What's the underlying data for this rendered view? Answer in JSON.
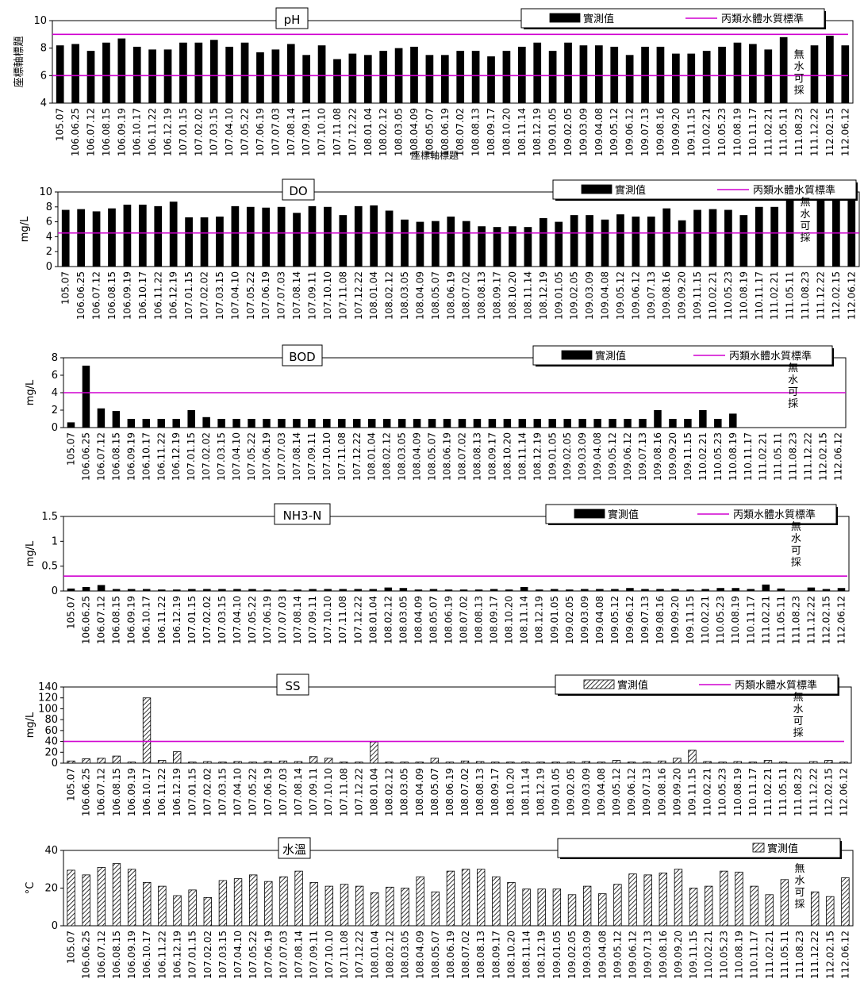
{
  "dates": [
    "105.07",
    "106.06.25",
    "106.07.12",
    "106.08.15",
    "106.09.19",
    "106.10.17",
    "106.11.22",
    "106.12.19",
    "107.01.15",
    "107.02.02",
    "107.03.15",
    "107.04.10",
    "107.05.22",
    "107.06.19",
    "107.07.03",
    "107.08.14",
    "107.09.11",
    "107.10.10",
    "107.11.08",
    "107.12.22",
    "108.01.04",
    "108.02.12",
    "108.03.05",
    "108.04.09",
    "108.05.07",
    "108.06.19",
    "108.07.02",
    "108.08.13",
    "108.09.17",
    "108.10.20",
    "108.11.14",
    "108.12.19",
    "109.01.05",
    "109.02.05",
    "109.03.09",
    "109.04.08",
    "109.05.12",
    "109.06.12",
    "109.07.13",
    "109.08.16",
    "109.09.20",
    "109.11.15",
    "110.02.21",
    "110.05.23",
    "110.08.19",
    "110.11.17",
    "111.02.21",
    "111.05.11",
    "111.08.23",
    "111.12.22",
    "112.02.15",
    "112.06.12"
  ],
  "legend_measured": "實測值",
  "legend_standard": "丙類水體水質標準",
  "no_water": [
    "無",
    "水",
    "可",
    "採"
  ],
  "overlay_text": "座標軸標題",
  "chart_data": [
    {
      "type": "bar",
      "title": "pH",
      "ylabel": "座標軸標題",
      "ylim": [
        4,
        10
      ],
      "yticks": [
        4,
        6,
        8,
        10
      ],
      "series": [
        {
          "name": "實測值",
          "values": [
            8.2,
            8.3,
            7.8,
            8.4,
            8.7,
            8.1,
            7.9,
            7.9,
            8.4,
            8.4,
            8.6,
            8.1,
            8.4,
            7.7,
            7.9,
            8.3,
            7.5,
            8.2,
            7.2,
            7.6,
            7.5,
            7.8,
            8.0,
            8.1,
            7.5,
            7.5,
            7.8,
            7.8,
            7.4,
            7.8,
            8.1,
            8.4,
            7.8,
            8.4,
            8.2,
            8.2,
            8.1,
            7.5,
            8.1,
            8.1,
            7.6,
            7.6,
            7.8,
            8.1,
            8.4,
            8.3,
            7.9,
            8.8,
            null,
            8.2,
            8.9,
            8.2
          ],
          "pattern": "solid"
        }
      ],
      "standard_lines": [
        9,
        6
      ],
      "no_water_index": 48,
      "categories": [
        "105.07",
        "106.06.25",
        "106.07.12",
        "106.08.15",
        "106.09.19",
        "106.10.17",
        "106.11.22",
        "106.12.19",
        "107.01.15",
        "107.02.02",
        "107.03.15",
        "107.04.10",
        "107.05.22",
        "107.06.19",
        "107.07.03",
        "107.08.14",
        "107.09.11",
        "107.10.10",
        "107.11.08",
        "107.12.22",
        "108.01.04",
        "108.02.12",
        "108.03.05",
        "108.04.09",
        "108.05.07",
        "108.06.19",
        "108.07.02",
        "108.08.13",
        "108.09.17",
        "108.10.20",
        "108.11.14",
        "108.12.19",
        "109.01.05",
        "109.02.05",
        "109.03.09",
        "109.04.08",
        "109.05.12",
        "109.06.12",
        "109.07.13",
        "109.08.16",
        "109.09.20",
        "109.11.15",
        "110.02.21",
        "110.05.23",
        "110.08.19",
        "110.11.17",
        "111.02.21",
        "111.05.11",
        "111.08.23",
        "111.12.22",
        "112.02.15",
        "112.06.12"
      ]
    },
    {
      "type": "bar",
      "title": "DO",
      "ylabel": "mg/L",
      "ylim": [
        0,
        10
      ],
      "yticks": [
        0,
        2,
        4,
        6,
        8,
        10
      ],
      "series": [
        {
          "name": "實測值",
          "values": [
            7.6,
            7.7,
            7.4,
            7.8,
            8.3,
            8.3,
            8.1,
            8.7,
            6.6,
            6.6,
            6.7,
            8.1,
            8.0,
            7.9,
            8.0,
            7.2,
            8.1,
            8.0,
            6.9,
            8.1,
            8.2,
            7.5,
            6.3,
            6.0,
            6.1,
            6.7,
            6.1,
            5.4,
            5.3,
            5.4,
            5.3,
            6.5,
            6.0,
            6.9,
            6.9,
            6.3,
            7.0,
            6.7,
            6.7,
            7.8,
            6.2,
            7.6,
            7.7,
            7.6,
            6.9,
            8.0,
            8.0,
            9.0,
            null,
            9.0,
            9.0,
            9.0
          ],
          "pattern": "solid"
        }
      ],
      "standard_lines": [
        4.5
      ],
      "no_water_index": 48,
      "categories": [
        "105.07",
        "106.06.25",
        "106.07.12",
        "106.08.15",
        "106.09.19",
        "106.10.17",
        "106.11.22",
        "106.12.19",
        "107.01.15",
        "107.02.02",
        "107.03.15",
        "107.04.10",
        "107.05.22",
        "107.06.19",
        "107.07.03",
        "107.08.14",
        "107.09.11",
        "107.10.10",
        "107.11.08",
        "107.12.22",
        "108.01.04",
        "108.02.12",
        "108.03.05",
        "108.04.09",
        "108.05.07",
        "108.06.19",
        "108.07.02",
        "108.08.13",
        "108.09.17",
        "108.10.20",
        "108.11.14",
        "108.12.19",
        "109.01.05",
        "109.02.05",
        "109.03.09",
        "109.04.08",
        "109.05.12",
        "109.06.12",
        "109.07.13",
        "109.08.16",
        "109.09.20",
        "109.11.15",
        "110.02.21",
        "110.05.23",
        "110.08.19",
        "110.11.17",
        "111.02.21",
        "111.05.11",
        "111.08.23",
        "111.12.22",
        "112.02.15",
        "112.06.12"
      ]
    },
    {
      "type": "bar",
      "title": "BOD",
      "ylabel": "mg/L",
      "ylim": [
        0,
        8
      ],
      "yticks": [
        0,
        2,
        4,
        6,
        8
      ],
      "series": [
        {
          "name": "實測值",
          "values": [
            0.6,
            7.1,
            2.2,
            1.9,
            1.0,
            1.0,
            1.0,
            1.0,
            2.0,
            1.2,
            1.0,
            1.0,
            1.0,
            1.0,
            1.0,
            1.0,
            1.0,
            1.0,
            1.0,
            1.0,
            1.0,
            1.0,
            1.0,
            1.0,
            1.0,
            1.0,
            1.0,
            1.0,
            1.0,
            1.0,
            1.0,
            1.0,
            1.0,
            1.0,
            1.0,
            1.0,
            1.0,
            1.0,
            1.0,
            2.0,
            1.0,
            1.0,
            2.0,
            1.0,
            1.6,
            null,
            null,
            null,
            null,
            null,
            null,
            null
          ],
          "pattern": "solid"
        }
      ],
      "standard_lines": [
        4
      ],
      "no_water_index": 48,
      "categories": [
        "105.07",
        "106.06.25",
        "106.07.12",
        "106.08.15",
        "106.09.19",
        "106.10.17",
        "106.11.22",
        "106.12.19",
        "107.01.15",
        "107.02.02",
        "107.03.15",
        "107.04.10",
        "107.05.22",
        "107.06.19",
        "107.07.03",
        "107.08.14",
        "107.09.11",
        "107.10.10",
        "107.11.08",
        "107.12.22",
        "108.01.04",
        "108.02.12",
        "108.03.05",
        "108.04.09",
        "108.05.07",
        "108.06.19",
        "108.07.02",
        "108.08.13",
        "108.09.17",
        "108.10.20",
        "108.11.14",
        "108.12.19",
        "109.01.05",
        "109.02.05",
        "109.03.09",
        "109.04.08",
        "109.05.12",
        "109.06.12",
        "109.07.13",
        "109.08.16",
        "109.09.20",
        "109.11.15",
        "110.02.21",
        "110.05.23",
        "110.08.19",
        "110.11.17",
        "111.02.21",
        "111.05.11",
        "111.08.23",
        "111.12.22",
        "112.02.15",
        "112.06.12"
      ]
    },
    {
      "type": "bar",
      "title": "NH3-N",
      "ylabel": "mg/L",
      "ylim": [
        0,
        1.5
      ],
      "yticks": [
        0,
        0.5,
        1,
        1.5
      ],
      "series": [
        {
          "name": "實測值",
          "values": [
            0.05,
            0.08,
            0.12,
            0.04,
            0.04,
            0.04,
            0.03,
            0.03,
            0.04,
            0.04,
            0.04,
            0.04,
            0.04,
            0.03,
            0.03,
            0.03,
            0.04,
            0.04,
            0.04,
            0.04,
            0.04,
            0.07,
            0.06,
            0.03,
            0.04,
            0.03,
            0.03,
            0.03,
            0.04,
            0.03,
            0.08,
            0.03,
            0.04,
            0.03,
            0.04,
            0.04,
            0.04,
            0.06,
            0.04,
            0.04,
            0.04,
            0.03,
            0.04,
            0.06,
            0.06,
            0.04,
            0.13,
            0.05,
            null,
            0.07,
            0.04,
            0.06
          ],
          "pattern": "solid"
        }
      ],
      "standard_lines": [
        0.3
      ],
      "no_water_index": 48,
      "categories": [
        "105.07",
        "106.06.25",
        "106.07.12",
        "106.08.15",
        "106.09.19",
        "106.10.17",
        "106.11.22",
        "106.12.19",
        "107.01.15",
        "107.02.02",
        "107.03.15",
        "107.04.10",
        "107.05.22",
        "107.06.19",
        "107.07.03",
        "107.08.14",
        "107.09.11",
        "107.10.10",
        "107.11.08",
        "107.12.22",
        "108.01.04",
        "108.02.12",
        "108.03.05",
        "108.04.09",
        "108.05.07",
        "108.06.19",
        "108.07.02",
        "108.08.13",
        "108.09.17",
        "108.10.20",
        "108.11.14",
        "108.12.19",
        "109.01.05",
        "109.02.05",
        "109.03.09",
        "109.04.08",
        "109.05.12",
        "109.06.12",
        "109.07.13",
        "109.08.16",
        "109.09.20",
        "109.11.15",
        "110.02.21",
        "110.05.23",
        "110.08.19",
        "110.11.17",
        "111.02.21",
        "111.05.11",
        "111.08.23",
        "111.12.22",
        "112.02.15",
        "112.06.12"
      ]
    },
    {
      "type": "bar",
      "title": "SS",
      "ylabel": "mg/L",
      "ylim": [
        0,
        140
      ],
      "yticks": [
        0,
        20,
        40,
        60,
        80,
        100,
        120,
        140
      ],
      "series": [
        {
          "name": "實測值",
          "values": [
            4,
            8,
            9,
            13,
            2,
            120,
            5,
            21,
            2,
            3,
            2,
            3,
            2,
            3,
            4,
            3,
            12,
            9,
            2,
            2,
            39,
            2,
            2,
            2,
            9,
            2,
            4,
            3,
            2,
            2,
            2,
            2,
            2,
            2,
            3,
            2,
            5,
            2,
            2,
            4,
            9,
            24,
            3,
            2,
            3,
            2,
            5,
            2,
            null,
            3,
            5,
            2
          ],
          "pattern": "hatch"
        }
      ],
      "standard_lines": [
        40
      ],
      "no_water_index": 48,
      "categories": [
        "105.07",
        "106.06.25",
        "106.07.12",
        "106.08.15",
        "106.09.19",
        "106.10.17",
        "106.11.22",
        "106.12.19",
        "107.01.15",
        "107.02.02",
        "107.03.15",
        "107.04.10",
        "107.05.22",
        "107.06.19",
        "107.07.03",
        "107.08.14",
        "107.09.11",
        "107.10.10",
        "107.11.08",
        "107.12.22",
        "108.01.04",
        "108.02.12",
        "108.03.05",
        "108.04.09",
        "108.05.07",
        "108.06.19",
        "108.07.02",
        "108.08.13",
        "108.09.17",
        "108.10.20",
        "108.11.14",
        "108.12.19",
        "109.01.05",
        "109.02.05",
        "109.03.09",
        "109.04.08",
        "109.05.12",
        "109.06.12",
        "109.07.13",
        "109.08.16",
        "109.09.20",
        "109.11.15",
        "110.02.21",
        "110.05.23",
        "110.08.19",
        "110.11.17",
        "111.02.21",
        "111.05.11",
        "111.08.23",
        "111.12.22",
        "112.02.15",
        "112.06.12"
      ]
    },
    {
      "type": "bar",
      "title": "水溫",
      "ylabel": "°C",
      "ylim": [
        0,
        40
      ],
      "yticks": [
        0,
        20,
        40
      ],
      "series": [
        {
          "name": "實測值",
          "values": [
            29.5,
            27,
            31,
            33,
            30,
            23,
            21,
            16,
            19,
            15,
            24,
            25,
            27,
            23.5,
            26,
            29,
            23,
            21,
            22,
            21,
            17.5,
            20.5,
            20,
            26,
            18,
            29,
            30,
            30,
            26,
            23,
            19.5,
            19.5,
            19.5,
            16.5,
            21,
            17,
            22,
            27.5,
            27,
            28,
            30,
            20,
            21,
            29,
            28.5,
            21,
            16.5,
            24.5,
            null,
            18,
            15.5,
            25.5
          ],
          "pattern": "hatch"
        }
      ],
      "standard_lines": [],
      "no_water_index": 48,
      "categories": [
        "105.07",
        "106.06.25",
        "106.07.12",
        "106.08.15",
        "106.09.19",
        "106.10.17",
        "106.11.22",
        "106.12.19",
        "107.01.15",
        "107.02.02",
        "107.03.15",
        "107.04.10",
        "107.05.22",
        "107.06.19",
        "107.07.03",
        "107.08.14",
        "107.09.11",
        "107.10.10",
        "107.11.08",
        "107.12.22",
        "108.01.04",
        "108.02.12",
        "108.03.05",
        "108.04.09",
        "108.05.07",
        "108.06.19",
        "108.07.02",
        "108.08.13",
        "108.09.17",
        "108.10.20",
        "108.11.14",
        "108.12.19",
        "109.01.05",
        "109.02.05",
        "109.03.09",
        "109.04.08",
        "109.05.12",
        "109.06.12",
        "109.07.13",
        "109.08.16",
        "109.09.20",
        "109.11.15",
        "110.02.21",
        "110.05.23",
        "110.08.19",
        "110.11.17",
        "111.02.21",
        "111.05.11",
        "111.08.23",
        "111.12.22",
        "112.02.15",
        "112.06.12"
      ]
    }
  ]
}
